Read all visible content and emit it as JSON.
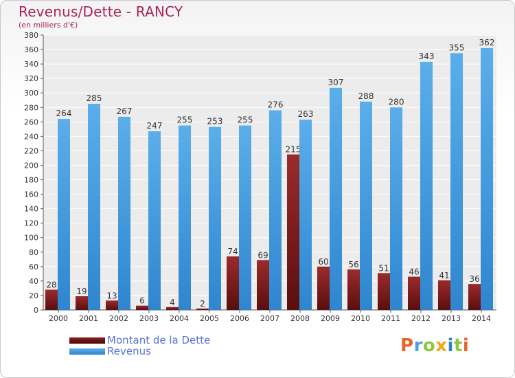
{
  "chart_data": {
    "type": "bar",
    "title": "Revenus/Dette - RANCY",
    "subtitle": "(en milliers d'€)",
    "categories": [
      "2000",
      "2001",
      "2002",
      "2003",
      "2004",
      "2005",
      "2006",
      "2007",
      "2008",
      "2009",
      "2010",
      "2011",
      "2012",
      "2013",
      "2014"
    ],
    "series": [
      {
        "name": "Montant de la Dette",
        "color": "#6b1a1a",
        "values": [
          28,
          19,
          13,
          6,
          4,
          2,
          74,
          69,
          215,
          60,
          56,
          51,
          46,
          41,
          36
        ]
      },
      {
        "name": "Revenus",
        "color": "#4a9fe0",
        "values": [
          264,
          285,
          267,
          247,
          255,
          253,
          255,
          276,
          263,
          307,
          288,
          280,
          343,
          355,
          362
        ]
      }
    ],
    "ylim": [
      0,
      380
    ],
    "ytick_step": 20,
    "grid": true,
    "legend_position": "bottom-left"
  },
  "logo": {
    "letters": [
      "P",
      "r",
      "o",
      "x",
      "i",
      "t",
      "i"
    ],
    "colors": [
      "#e8632a",
      "#4aa3df",
      "#8dc63f",
      "#f2a51a",
      "#2e86c1",
      "#8dc63f",
      "#e8632a"
    ]
  }
}
